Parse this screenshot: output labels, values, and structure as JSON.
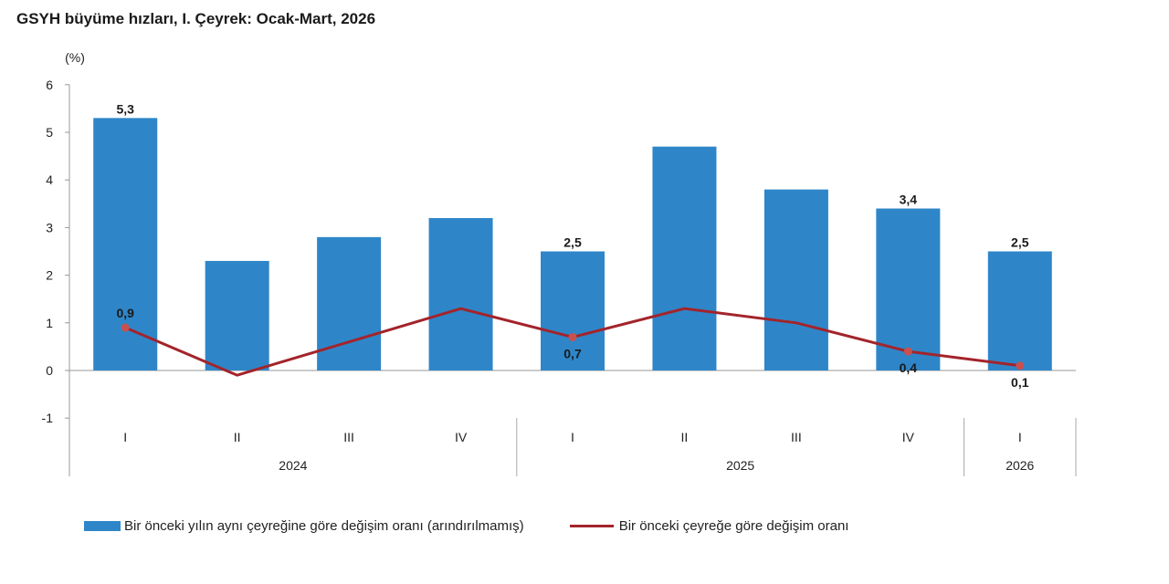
{
  "chart_data": {
    "type": "bar+line",
    "title": "GSYH büyüme hızları, I. Çeyrek: Ocak-Mart, 2026",
    "unit_label": "(%)",
    "ylim": [
      -1,
      6
    ],
    "yticks": [
      "6",
      "5",
      "4",
      "3",
      "2",
      "1",
      "0",
      "-1"
    ],
    "categories": [
      "I",
      "II",
      "III",
      "IV",
      "I",
      "II",
      "III",
      "IV",
      "I"
    ],
    "year_groups": [
      {
        "label": "2024",
        "span": 4
      },
      {
        "label": "2025",
        "span": 4
      },
      {
        "label": "2026",
        "span": 1
      }
    ],
    "series": [
      {
        "name": "Bir önceki yılın aynı çeyreğine göre değişim oranı (arındırılmamış)",
        "type": "bar",
        "color": "#2e86c9",
        "values": [
          5.3,
          2.3,
          2.8,
          3.2,
          2.5,
          4.7,
          3.8,
          3.4,
          2.5
        ],
        "labels": [
          "5,3",
          "",
          "",
          "",
          "2,5",
          "",
          "",
          "3,4",
          "2,5"
        ]
      },
      {
        "name": "Bir önceki çeyreğe göre değişim oranı",
        "type": "line",
        "color": "#a3242b",
        "values": [
          0.9,
          -0.1,
          0.6,
          1.3,
          0.7,
          1.3,
          1.0,
          0.4,
          0.1
        ],
        "labels": [
          "0,9",
          "",
          "",
          "",
          "0,7",
          "",
          "",
          "0,4",
          "0,1"
        ]
      }
    ]
  }
}
